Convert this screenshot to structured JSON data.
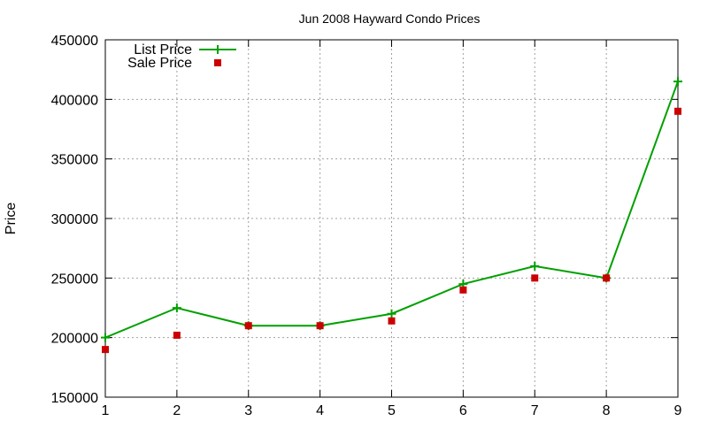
{
  "chart_data": {
    "type": "line",
    "title": "Jun 2008 Hayward Condo Prices",
    "xlabel": "",
    "ylabel": "Price",
    "x": [
      1,
      2,
      3,
      4,
      5,
      6,
      7,
      8,
      9
    ],
    "xlim": [
      1,
      9
    ],
    "ylim": [
      150000,
      450000
    ],
    "yticks": [
      150000,
      200000,
      250000,
      300000,
      350000,
      400000,
      450000
    ],
    "xticks": [
      1,
      2,
      3,
      4,
      5,
      6,
      7,
      8,
      9
    ],
    "grid": true,
    "legend_position": "top-left",
    "series": [
      {
        "name": "List Price",
        "style": "line+cross",
        "color": "#00a000",
        "values": [
          200000,
          224900,
          210000,
          210000,
          220000,
          245000,
          260000,
          250000,
          415000
        ]
      },
      {
        "name": "Sale Price",
        "style": "square-points",
        "color": "#cc0000",
        "values": [
          190000,
          202000,
          210000,
          210000,
          214000,
          240000,
          250000,
          250000,
          390000
        ]
      }
    ]
  }
}
